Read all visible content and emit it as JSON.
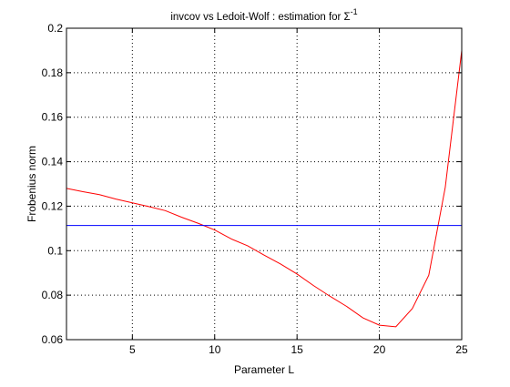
{
  "chart_data": {
    "type": "line",
    "title": "invcov vs Ledoit-Wolf : estimation for  Σ",
    "title_superscript": "-1",
    "xlabel": "Parameter L",
    "ylabel": "Frobenius norm",
    "xlim": [
      1,
      25
    ],
    "ylim": [
      0.06,
      0.2
    ],
    "xticks": [
      5,
      10,
      15,
      20,
      25
    ],
    "yticks": [
      0.06,
      0.08,
      0.1,
      0.12,
      0.14,
      0.16,
      0.18,
      0.2
    ],
    "xtick_labels": [
      "5",
      "10",
      "15",
      "20",
      "25"
    ],
    "ytick_labels": [
      "0.06",
      "0.08",
      "0.1",
      "0.12",
      "0.14",
      "0.16",
      "0.18",
      "0.2"
    ],
    "grid": true,
    "series": [
      {
        "color": "#ff0000",
        "x": [
          1,
          2,
          3,
          4,
          5,
          6,
          7,
          8,
          9,
          10,
          11,
          12,
          13,
          14,
          15,
          16,
          17,
          18,
          19,
          20,
          21,
          22,
          23,
          24,
          25
        ],
        "y": [
          0.128,
          0.1265,
          0.1252,
          0.1232,
          0.1215,
          0.1198,
          0.118,
          0.115,
          0.1123,
          0.1093,
          0.1053,
          0.1022,
          0.098,
          0.094,
          0.0895,
          0.0843,
          0.0795,
          0.075,
          0.0698,
          0.0665,
          0.0658,
          0.074,
          0.089,
          0.1285,
          0.19
        ]
      },
      {
        "color": "#0000ff",
        "x": [
          1,
          25
        ],
        "y": [
          0.1113,
          0.1113
        ]
      }
    ]
  }
}
